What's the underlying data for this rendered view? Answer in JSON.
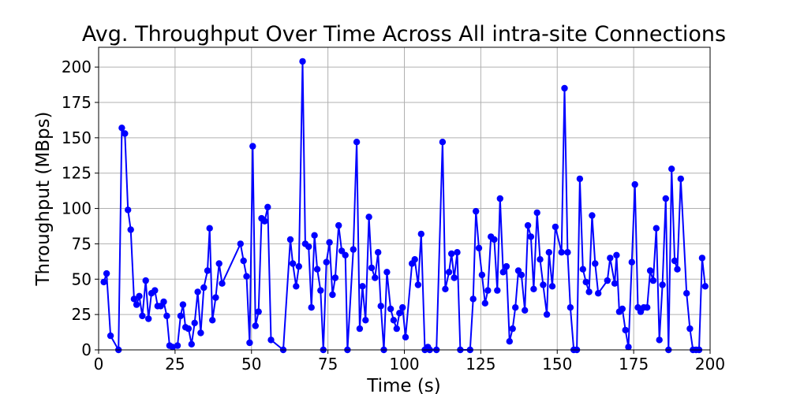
{
  "chart_data": {
    "type": "line",
    "title": "Avg. Throughput Over Time Across All intra-site Connections",
    "xlabel": "Time (s)",
    "ylabel": "Throughput (MBps)",
    "xlim": [
      0,
      200
    ],
    "ylim": [
      0,
      214
    ],
    "x_ticks": [
      0,
      25,
      50,
      75,
      100,
      125,
      150,
      175,
      200
    ],
    "y_ticks": [
      0,
      25,
      50,
      75,
      100,
      125,
      150,
      175,
      200
    ],
    "grid": true,
    "marker": "circle",
    "series": [
      {
        "color": "#0000ff",
        "points": [
          [
            1.7,
            48
          ],
          [
            2.6,
            54
          ],
          [
            3.9,
            10
          ],
          [
            6.5,
            0
          ],
          [
            7.6,
            157
          ],
          [
            8.6,
            153
          ],
          [
            9.6,
            99
          ],
          [
            10.5,
            85
          ],
          [
            11.6,
            36
          ],
          [
            12.4,
            32
          ],
          [
            13.3,
            38
          ],
          [
            14.3,
            24
          ],
          [
            15.4,
            49
          ],
          [
            16.3,
            22
          ],
          [
            17.3,
            40
          ],
          [
            18.4,
            42
          ],
          [
            19.3,
            31
          ],
          [
            20.3,
            31
          ],
          [
            21.3,
            34
          ],
          [
            22.3,
            24
          ],
          [
            23.2,
            3
          ],
          [
            24.2,
            2
          ],
          [
            25.8,
            3
          ],
          [
            26.8,
            24
          ],
          [
            27.6,
            32
          ],
          [
            28.4,
            16
          ],
          [
            29.4,
            15
          ],
          [
            30.4,
            4
          ],
          [
            31.4,
            19
          ],
          [
            32.4,
            41
          ],
          [
            33.4,
            12
          ],
          [
            34.4,
            44
          ],
          [
            35.6,
            56
          ],
          [
            36.3,
            86
          ],
          [
            37.2,
            21
          ],
          [
            38.3,
            37
          ],
          [
            39.4,
            61
          ],
          [
            40.4,
            47
          ],
          [
            46.4,
            75
          ],
          [
            47.4,
            63
          ],
          [
            48.4,
            52
          ],
          [
            49.4,
            5
          ],
          [
            50.4,
            144
          ],
          [
            51.3,
            17
          ],
          [
            52.3,
            27
          ],
          [
            53.3,
            93
          ],
          [
            54.3,
            91
          ],
          [
            55.3,
            101
          ],
          [
            56.4,
            7
          ],
          [
            60.4,
            0
          ],
          [
            62.7,
            78
          ],
          [
            63.5,
            61
          ],
          [
            64.6,
            45
          ],
          [
            65.5,
            59
          ],
          [
            66.7,
            204
          ],
          [
            67.6,
            75
          ],
          [
            68.7,
            73
          ],
          [
            69.6,
            30
          ],
          [
            70.6,
            81
          ],
          [
            71.5,
            57
          ],
          [
            72.6,
            42
          ],
          [
            73.5,
            0
          ],
          [
            74.5,
            62
          ],
          [
            75.5,
            76
          ],
          [
            76.5,
            39
          ],
          [
            77.4,
            51
          ],
          [
            78.5,
            88
          ],
          [
            79.5,
            70
          ],
          [
            80.7,
            67
          ],
          [
            81.4,
            0
          ],
          [
            83.3,
            71
          ],
          [
            84.4,
            147
          ],
          [
            85.4,
            15
          ],
          [
            86.3,
            45
          ],
          [
            87.3,
            21
          ],
          [
            88.4,
            94
          ],
          [
            89.3,
            58
          ],
          [
            90.4,
            51
          ],
          [
            91.4,
            69
          ],
          [
            92.3,
            31
          ],
          [
            93.3,
            0
          ],
          [
            94.3,
            55
          ],
          [
            95.5,
            29
          ],
          [
            96.5,
            21
          ],
          [
            97.5,
            15
          ],
          [
            98.4,
            26
          ],
          [
            99.4,
            30
          ],
          [
            100.4,
            9
          ],
          [
            102.5,
            61
          ],
          [
            103.4,
            64
          ],
          [
            104.5,
            46
          ],
          [
            105.5,
            82
          ],
          [
            106.7,
            0
          ],
          [
            107.7,
            2
          ],
          [
            108.3,
            0
          ],
          [
            110.5,
            0
          ],
          [
            112.5,
            147
          ],
          [
            113.4,
            43
          ],
          [
            114.6,
            55
          ],
          [
            115.4,
            68
          ],
          [
            116.3,
            51
          ],
          [
            117.3,
            69
          ],
          [
            118.3,
            0
          ],
          [
            121.5,
            0
          ],
          [
            122.5,
            36
          ],
          [
            123.4,
            98
          ],
          [
            124.4,
            72
          ],
          [
            125.4,
            53
          ],
          [
            126.4,
            33
          ],
          [
            127.3,
            42
          ],
          [
            128.3,
            80
          ],
          [
            129.4,
            78
          ],
          [
            130.4,
            42
          ],
          [
            131.3,
            107
          ],
          [
            132.3,
            55
          ],
          [
            133.4,
            59
          ],
          [
            134.4,
            6
          ],
          [
            135.4,
            15
          ],
          [
            136.3,
            30
          ],
          [
            137.3,
            56
          ],
          [
            138.3,
            53
          ],
          [
            139.4,
            28
          ],
          [
            140.4,
            88
          ],
          [
            141.4,
            80
          ],
          [
            142.3,
            43
          ],
          [
            143.4,
            97
          ],
          [
            144.4,
            64
          ],
          [
            145.4,
            46
          ],
          [
            146.6,
            25
          ],
          [
            147.3,
            69
          ],
          [
            148.4,
            45
          ],
          [
            149.4,
            87
          ],
          [
            151.4,
            69
          ],
          [
            152.4,
            185
          ],
          [
            153.4,
            69
          ],
          [
            154.3,
            30
          ],
          [
            155.4,
            0
          ],
          [
            156.4,
            0
          ],
          [
            157.4,
            121
          ],
          [
            158.4,
            57
          ],
          [
            159.4,
            48
          ],
          [
            160.4,
            41
          ],
          [
            161.4,
            95
          ],
          [
            162.4,
            61
          ],
          [
            163.4,
            40
          ],
          [
            166.4,
            49
          ],
          [
            167.3,
            65
          ],
          [
            168.8,
            47
          ],
          [
            169.4,
            67
          ],
          [
            170.3,
            27
          ],
          [
            171.3,
            29
          ],
          [
            172.3,
            14
          ],
          [
            173.3,
            2
          ],
          [
            174.4,
            62
          ],
          [
            175.4,
            117
          ],
          [
            176.4,
            30
          ],
          [
            177.3,
            27
          ],
          [
            178.3,
            30
          ],
          [
            179.4,
            30
          ],
          [
            180.4,
            56
          ],
          [
            181.4,
            49
          ],
          [
            182.4,
            86
          ],
          [
            183.4,
            7
          ],
          [
            184.4,
            46
          ],
          [
            185.5,
            107
          ],
          [
            186.4,
            0
          ],
          [
            187.4,
            128
          ],
          [
            188.4,
            63
          ],
          [
            189.3,
            57
          ],
          [
            190.4,
            121
          ],
          [
            192.3,
            40
          ],
          [
            193.4,
            15
          ],
          [
            194.4,
            0
          ],
          [
            195.4,
            0
          ],
          [
            196.4,
            0
          ],
          [
            197.4,
            65
          ],
          [
            198.4,
            45
          ]
        ]
      }
    ]
  }
}
